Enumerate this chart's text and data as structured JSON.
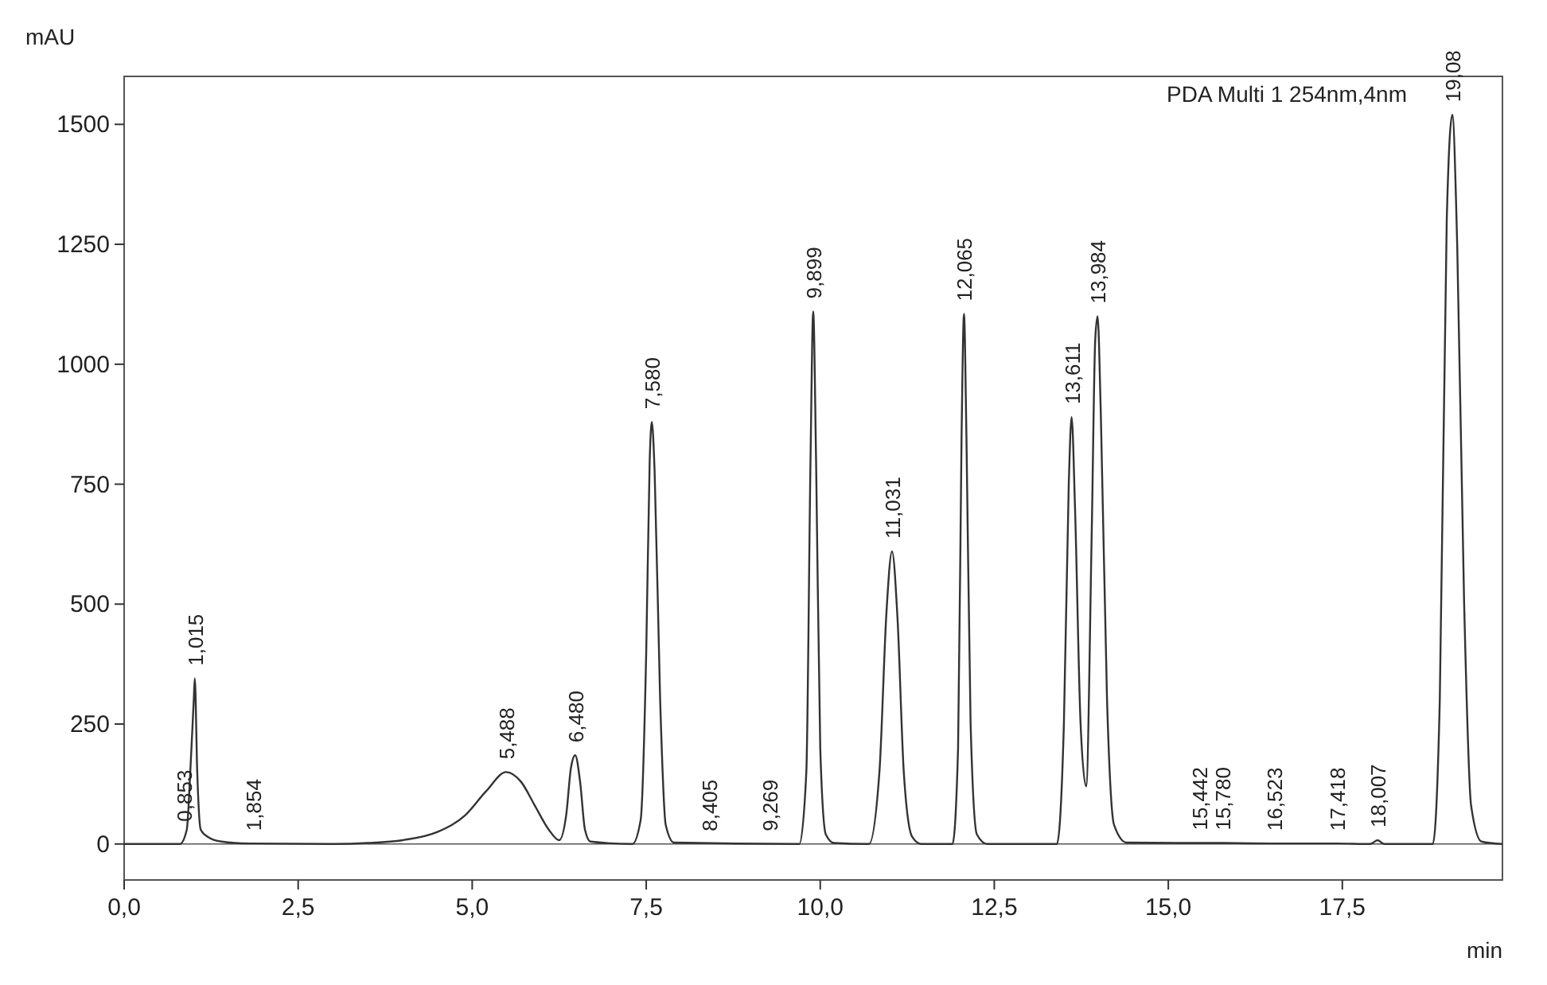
{
  "chart_data": {
    "type": "line",
    "xlabel": "min",
    "ylabel": "mAU",
    "xlim": [
      0,
      19.8
    ],
    "ylim": [
      -75,
      1600
    ],
    "xticks": [
      {
        "value": 0,
        "label": "0,0"
      },
      {
        "value": 2.5,
        "label": "2,5"
      },
      {
        "value": 5,
        "label": "5,0"
      },
      {
        "value": 7.5,
        "label": "7,5"
      },
      {
        "value": 10,
        "label": "10,0"
      },
      {
        "value": 12.5,
        "label": "12,5"
      },
      {
        "value": 15,
        "label": "15,0"
      },
      {
        "value": 17.5,
        "label": "17,5"
      }
    ],
    "yticks": [
      0,
      250,
      500,
      750,
      1000,
      1250,
      1500
    ],
    "marker": "none",
    "line_style": "solid",
    "ref_lines": [
      {
        "axis": "y",
        "value": 0
      }
    ],
    "series": [
      {
        "color": "#333333",
        "x": [
          0,
          0.8,
          0.9,
          0.95,
          1.0,
          1.015,
          1.05,
          1.1,
          1.2,
          1.4,
          1.8,
          3.0,
          3.5,
          4.0,
          4.5,
          4.9,
          5.2,
          5.488,
          5.7,
          5.9,
          6.1,
          6.25,
          6.35,
          6.42,
          6.48,
          6.55,
          6.62,
          6.7,
          7.3,
          7.42,
          7.5,
          7.55,
          7.58,
          7.62,
          7.7,
          7.78,
          7.9,
          9.7,
          9.8,
          9.86,
          9.899,
          9.94,
          10.0,
          10.08,
          10.2,
          10.7,
          10.85,
          10.95,
          11.031,
          11.11,
          11.2,
          11.32,
          11.45,
          11.9,
          11.98,
          12.03,
          12.065,
          12.1,
          12.16,
          12.25,
          12.4,
          13.4,
          13.5,
          13.57,
          13.611,
          13.66,
          13.74,
          13.82,
          13.9,
          13.95,
          13.984,
          14.03,
          14.12,
          14.22,
          14.4,
          15.442,
          15.78,
          16.523,
          17.418,
          17.9,
          18.007,
          18.1,
          18.8,
          18.9,
          19.0,
          19.08,
          19.15,
          19.25,
          19.35,
          19.5,
          19.8
        ],
        "values": [
          0,
          0,
          30,
          150,
          300,
          345,
          150,
          30,
          15,
          5,
          1,
          0,
          2,
          8,
          25,
          60,
          110,
          150,
          130,
          80,
          30,
          8,
          60,
          160,
          185,
          130,
          30,
          5,
          0,
          50,
          400,
          800,
          880,
          780,
          300,
          40,
          3,
          0,
          150,
          800,
          1110,
          800,
          200,
          20,
          2,
          0,
          150,
          480,
          610,
          470,
          150,
          15,
          0,
          0,
          200,
          850,
          1105,
          850,
          250,
          20,
          0,
          0,
          250,
          750,
          890,
          700,
          250,
          120,
          650,
          1050,
          1100,
          900,
          300,
          40,
          3,
          2,
          2,
          1,
          1,
          0,
          8,
          0,
          0,
          300,
          1300,
          1520,
          1250,
          500,
          80,
          5,
          0
        ]
      }
    ],
    "annotations": [
      "PDA Multi 1 254nm,4nm",
      {
        "text": "0,853",
        "x": 0.853,
        "y": 20
      },
      {
        "text": "1,015",
        "x": 1.015,
        "y": 345
      },
      {
        "text": "1,854",
        "x": 1.854,
        "y": 1
      },
      {
        "text": "5,488",
        "x": 5.488,
        "y": 150
      },
      {
        "text": "6,480",
        "x": 6.48,
        "y": 185
      },
      {
        "text": "7,580",
        "x": 7.58,
        "y": 880
      },
      {
        "text": "8,405",
        "x": 8.405,
        "y": 0
      },
      {
        "text": "9,269",
        "x": 9.269,
        "y": 0
      },
      {
        "text": "9,899",
        "x": 9.899,
        "y": 1110
      },
      {
        "text": "11,031",
        "x": 11.031,
        "y": 610
      },
      {
        "text": "12,065",
        "x": 12.065,
        "y": 1105
      },
      {
        "text": "13,611",
        "x": 13.611,
        "y": 890
      },
      {
        "text": "13,984",
        "x": 13.984,
        "y": 1100
      },
      {
        "text": "15,442",
        "x": 15.442,
        "y": 2
      },
      {
        "text": "15,780",
        "x": 15.78,
        "y": 2
      },
      {
        "text": "16,523",
        "x": 16.523,
        "y": 1
      },
      {
        "text": "17,418",
        "x": 17.418,
        "y": 1
      },
      {
        "text": "18,007",
        "x": 18.007,
        "y": 8
      },
      {
        "text": "19,08",
        "x": 19.08,
        "y": 1520
      }
    ]
  }
}
